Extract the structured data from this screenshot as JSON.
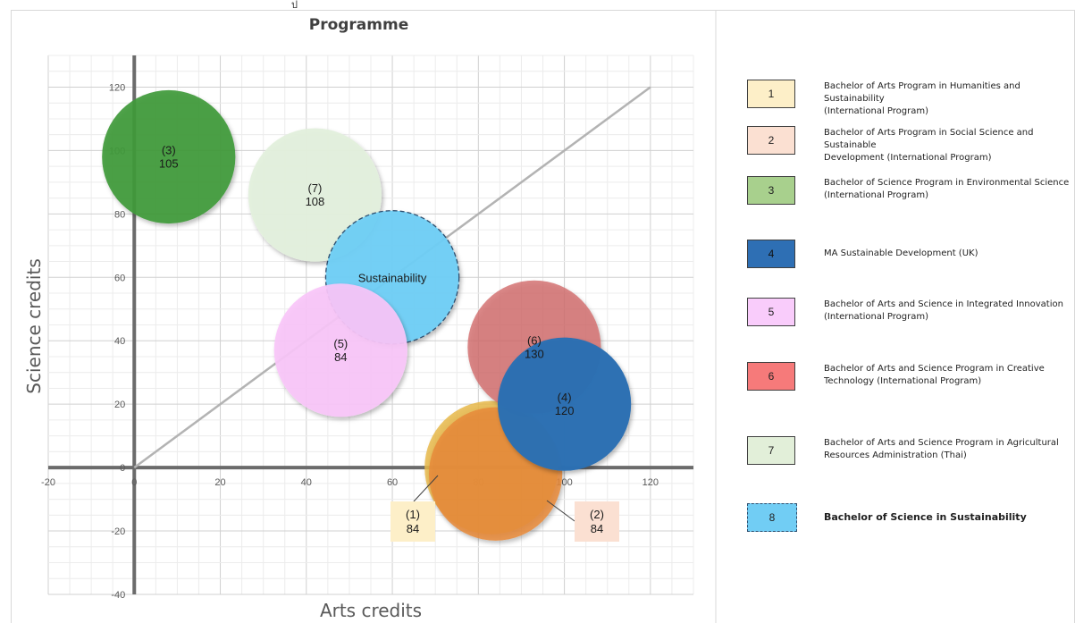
{
  "top_glyph": "ป",
  "chart_data": {
    "type": "scatter",
    "title": "Programme",
    "xlabel": "Arts credits",
    "ylabel": "Science credits",
    "xlim": [
      -20,
      130
    ],
    "ylim": [
      -40,
      130
    ],
    "xticks": [
      -20,
      0,
      20,
      40,
      60,
      80,
      100,
      120
    ],
    "yticks": [
      -40,
      -20,
      0,
      20,
      40,
      60,
      80,
      100,
      120
    ],
    "grid": true,
    "diagonal_line": {
      "from": [
        0,
        0
      ],
      "to": [
        120,
        120
      ],
      "color": "#b3b3b3"
    },
    "series": [
      {
        "id": "3",
        "tag": "(3)",
        "total": "105",
        "x": 8,
        "y": 98,
        "color": "#3f9a3a",
        "opacity": 0.92
      },
      {
        "id": "7",
        "tag": "(7)",
        "total": "108",
        "x": 42,
        "y": 86,
        "color": "#e3f0dc",
        "opacity": 0.95
      },
      {
        "id": "5",
        "tag": "(5)",
        "total": "84",
        "x": 48,
        "y": 37,
        "color": "#f9c6f9",
        "opacity": 0.92
      },
      {
        "id": "1",
        "tag": "(1)",
        "total": "84",
        "x": 83,
        "y": 0,
        "color": "#e8b94b",
        "opacity": 0.85,
        "callout": true
      },
      {
        "id": "2",
        "tag": "(2)",
        "total": "84",
        "x": 84,
        "y": -2,
        "color": "#e8893a",
        "opacity": 0.85,
        "callout": true
      },
      {
        "id": "4",
        "tag": "(4)",
        "total": "120",
        "x": 100,
        "y": 20,
        "color": "#2c6fb2",
        "opacity": 0.98
      },
      {
        "id": "6",
        "tag": "(6)",
        "total": "130",
        "x": 93,
        "y": 38,
        "color": "#d26a6a",
        "opacity": 0.8
      },
      {
        "id": "8",
        "tag": "Sustainability",
        "total": "",
        "x": 60,
        "y": 60,
        "color": "#6fcff5",
        "opacity": 0.95,
        "dashed": true
      }
    ]
  },
  "legend": [
    {
      "num": "1",
      "color": "#fdefc8",
      "text": "Bachelor of Arts Program in Humanities and Sustainability\n(International Program)"
    },
    {
      "num": "2",
      "color": "#fbe0d2",
      "text": "Bachelor of Arts Program in Social Science and Sustainable\nDevelopment (International Program)"
    },
    {
      "num": "3",
      "color": "#a8d08d",
      "text": "Bachelor of Science Program in Environmental Science\n(International Program)"
    },
    {
      "num": "4",
      "color": "#2e6fb4",
      "text": "MA Sustainable Development (UK)"
    },
    {
      "num": "5",
      "color": "#f9ccfb",
      "text": "Bachelor of Arts and Science in Integrated Innovation\n(International Program)"
    },
    {
      "num": "6",
      "color": "#f67a7a",
      "text": "Bachelor of Arts and Science Program  in Creative\nTechnology (International Program)"
    },
    {
      "num": "7",
      "color": "#e2efd9",
      "text": "Bachelor of Arts and Science  Program in Agricultural\nResources Administration (Thai)"
    },
    {
      "num": "8",
      "color": "#71cdf4",
      "text": "Bachelor of Science in Sustainability",
      "bold": true,
      "dashed": true
    }
  ]
}
